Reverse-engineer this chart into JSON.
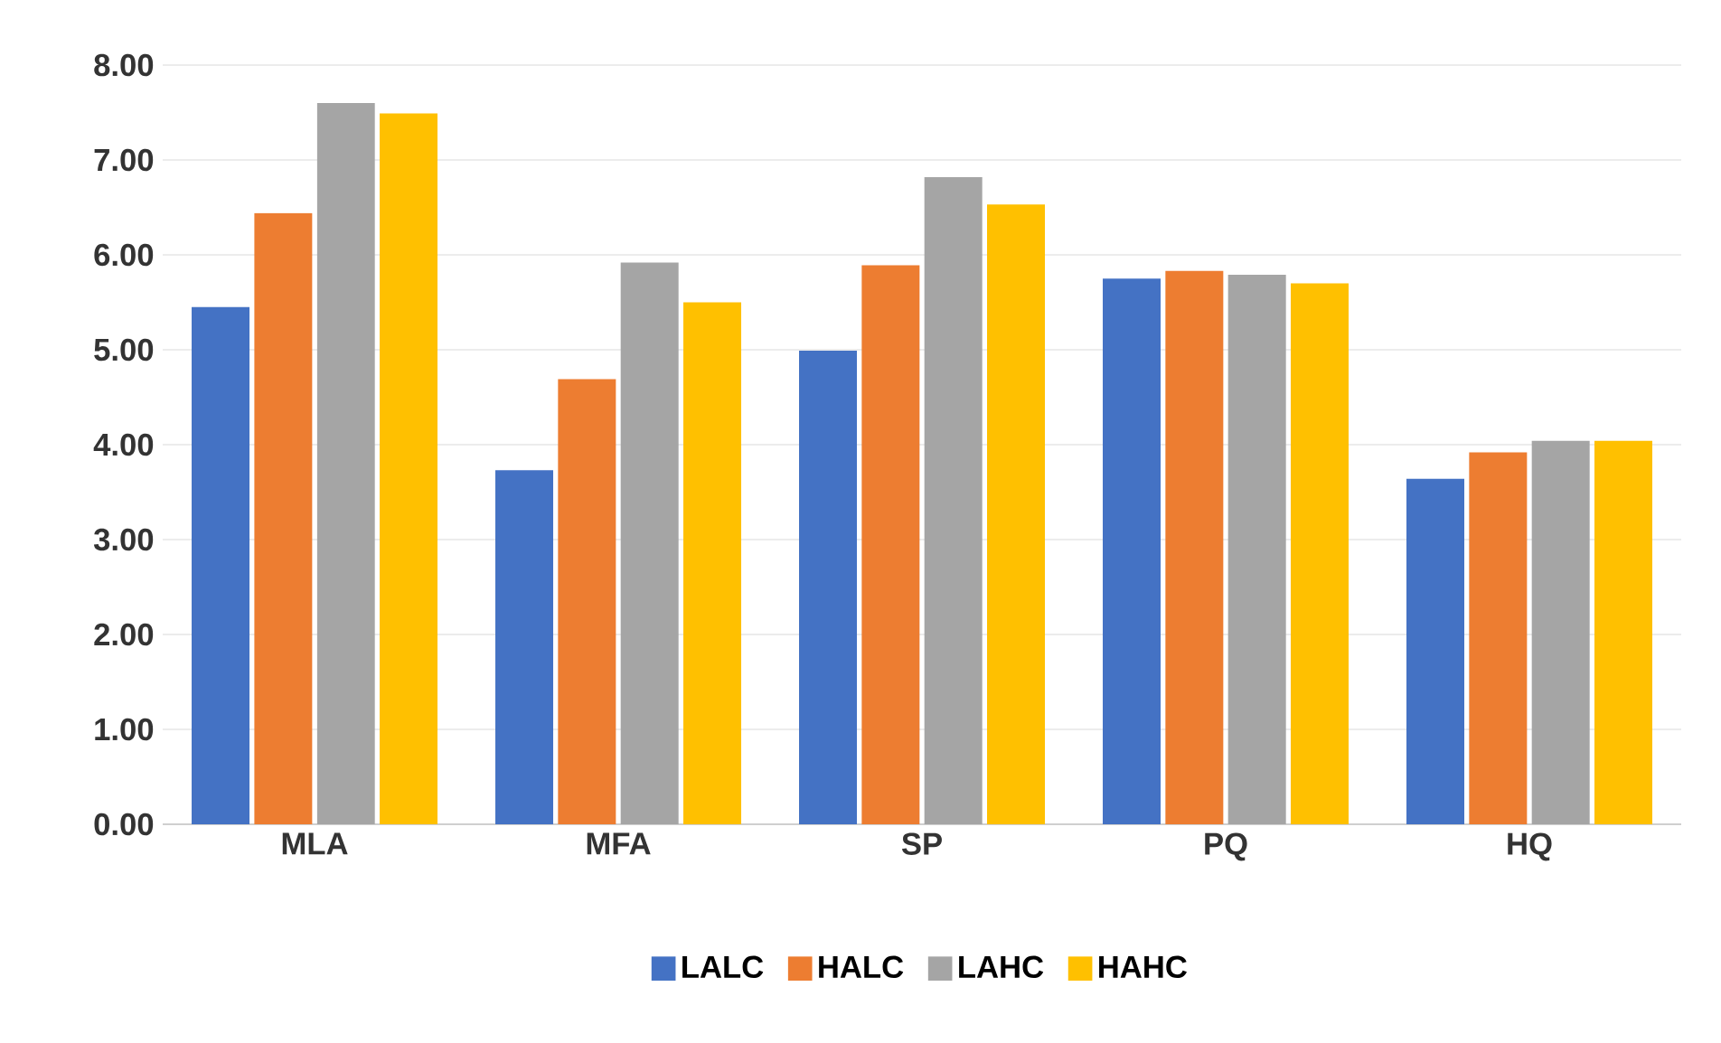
{
  "chart_data": {
    "type": "bar",
    "categories": [
      "MLA",
      "MFA",
      "SP",
      "PQ",
      "HQ"
    ],
    "series": [
      {
        "name": "LALC",
        "color": "#4472c4",
        "values": [
          5.45,
          3.73,
          4.99,
          5.75,
          3.64
        ]
      },
      {
        "name": "HALC",
        "color": "#ed7d31",
        "values": [
          6.44,
          4.69,
          5.89,
          5.83,
          3.92
        ]
      },
      {
        "name": "LAHC",
        "color": "#a5a5a5",
        "values": [
          7.6,
          5.92,
          6.82,
          5.79,
          4.04
        ]
      },
      {
        "name": "HAHC",
        "color": "#ffc000",
        "values": [
          7.49,
          5.5,
          6.53,
          5.7,
          4.04
        ]
      }
    ],
    "ylim": [
      0,
      8
    ],
    "yticks": [
      {
        "value": 0,
        "label": "0.00"
      },
      {
        "value": 1,
        "label": "1.00"
      },
      {
        "value": 2,
        "label": "2.00"
      },
      {
        "value": 3,
        "label": "3.00"
      },
      {
        "value": 4,
        "label": "4.00"
      },
      {
        "value": 5,
        "label": "5.00"
      },
      {
        "value": 6,
        "label": "6.00"
      },
      {
        "value": 7,
        "label": "7.00"
      },
      {
        "value": 8,
        "label": "8.00"
      }
    ],
    "grid": "y",
    "legend": "bottom"
  }
}
